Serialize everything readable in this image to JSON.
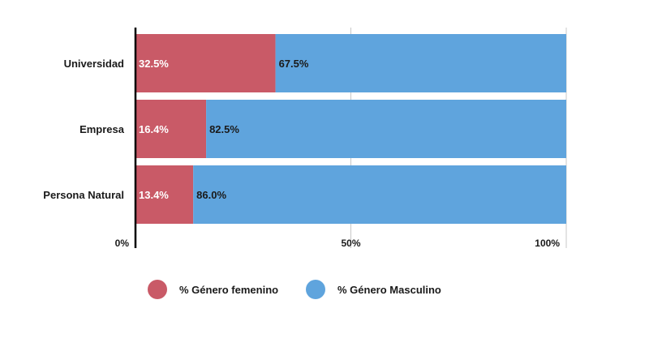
{
  "chart_data": {
    "type": "bar",
    "orientation": "horizontal",
    "stacked": true,
    "categories": [
      "Universidad",
      "Empresa",
      "Persona Natural"
    ],
    "series": [
      {
        "name": "% Género femenino",
        "values": [
          32.5,
          16.4,
          13.4
        ],
        "color": "#c95a67"
      },
      {
        "name": "% Género Masculino",
        "values": [
          67.5,
          82.5,
          86.0
        ],
        "color": "#5fa4dd"
      }
    ],
    "value_labels": [
      [
        "32.5%",
        "16.4%",
        "13.4%"
      ],
      [
        "67.5%",
        "82.5%",
        "86.0%"
      ]
    ],
    "xlim": [
      0,
      100
    ],
    "xticks": [
      0,
      50,
      100
    ],
    "xtick_labels": [
      "0%",
      "50%",
      "100%"
    ],
    "grid": true,
    "legend_position": "bottom-left"
  }
}
